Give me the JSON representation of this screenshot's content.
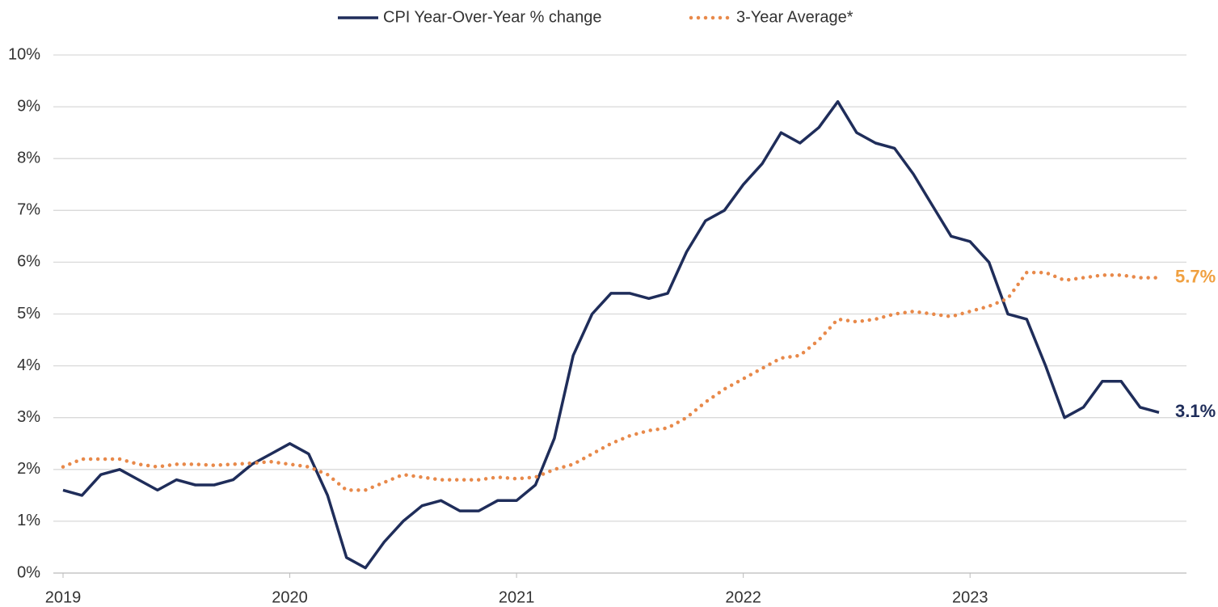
{
  "chart_data": {
    "type": "line",
    "categories": [
      "2019",
      null,
      null,
      null,
      null,
      null,
      null,
      null,
      null,
      null,
      null,
      null,
      "2020",
      null,
      null,
      null,
      null,
      null,
      null,
      null,
      null,
      null,
      null,
      null,
      "2021",
      null,
      null,
      null,
      null,
      null,
      null,
      null,
      null,
      null,
      null,
      null,
      "2022",
      null,
      null,
      null,
      null,
      null,
      null,
      null,
      null,
      null,
      null,
      null,
      "2023",
      null,
      null,
      null,
      null,
      null,
      null,
      null,
      null,
      null,
      null
    ],
    "series": [
      {
        "name": "CPI Year-Over-Year % change",
        "color": "#1f2d5a",
        "style": "solid",
        "values": [
          1.6,
          1.5,
          1.9,
          2.0,
          1.8,
          1.6,
          1.8,
          1.7,
          1.7,
          1.8,
          2.1,
          2.3,
          2.5,
          2.3,
          1.5,
          0.3,
          0.1,
          0.6,
          1.0,
          1.3,
          1.4,
          1.2,
          1.2,
          1.4,
          1.4,
          1.7,
          2.6,
          4.2,
          5.0,
          5.4,
          5.4,
          5.3,
          5.4,
          6.2,
          6.8,
          7.0,
          7.5,
          7.9,
          8.5,
          8.3,
          8.6,
          9.1,
          8.5,
          8.3,
          8.2,
          7.7,
          7.1,
          6.5,
          6.4,
          6.0,
          5.0,
          4.9,
          4.0,
          3.0,
          3.2,
          3.7,
          3.7,
          3.2,
          3.1
        ],
        "value_labels": [
          null,
          null,
          null,
          null,
          null,
          null,
          null,
          null,
          null,
          null,
          null,
          null,
          null,
          null,
          null,
          null,
          null,
          null,
          null,
          null,
          null,
          null,
          null,
          null,
          null,
          null,
          null,
          null,
          null,
          null,
          null,
          null,
          null,
          null,
          null,
          null,
          null,
          null,
          null,
          null,
          null,
          null,
          null,
          null,
          null,
          null,
          null,
          null,
          null,
          null,
          null,
          null,
          null,
          null,
          null,
          null,
          null,
          null,
          "3.1%"
        ],
        "label_color": "#1f2d5a"
      },
      {
        "name": "3-Year Average*",
        "color": "#e8894a",
        "style": "dotted",
        "values": [
          2.05,
          2.2,
          2.2,
          2.2,
          2.1,
          2.05,
          2.1,
          2.1,
          2.08,
          2.1,
          2.12,
          2.15,
          2.1,
          2.05,
          1.9,
          1.6,
          1.6,
          1.75,
          1.9,
          1.85,
          1.8,
          1.8,
          1.8,
          1.85,
          1.82,
          1.85,
          2.0,
          2.1,
          2.3,
          2.5,
          2.65,
          2.75,
          2.8,
          3.0,
          3.3,
          3.55,
          3.75,
          3.95,
          4.15,
          4.2,
          4.5,
          4.9,
          4.85,
          4.9,
          5.0,
          5.05,
          5.0,
          4.95,
          5.05,
          5.15,
          5.3,
          5.8,
          5.8,
          5.65,
          5.7,
          5.75,
          5.75,
          5.7,
          5.7
        ],
        "value_labels": [
          null,
          null,
          null,
          null,
          null,
          null,
          null,
          null,
          null,
          null,
          null,
          null,
          null,
          null,
          null,
          null,
          null,
          null,
          null,
          null,
          null,
          null,
          null,
          null,
          null,
          null,
          null,
          null,
          null,
          null,
          null,
          null,
          null,
          null,
          null,
          null,
          null,
          null,
          null,
          null,
          null,
          null,
          null,
          null,
          null,
          null,
          null,
          null,
          null,
          null,
          null,
          null,
          null,
          null,
          null,
          null,
          null,
          null,
          "5.7%"
        ],
        "label_color": "#f0a040"
      }
    ],
    "ylim": [
      0,
      10
    ],
    "yticks": [
      {
        "value": 0,
        "label": "0%"
      },
      {
        "value": 1,
        "label": "1%"
      },
      {
        "value": 2,
        "label": "2%"
      },
      {
        "value": 3,
        "label": "3%"
      },
      {
        "value": 4,
        "label": "4%"
      },
      {
        "value": 5,
        "label": "5%"
      },
      {
        "value": 6,
        "label": "6%"
      },
      {
        "value": 7,
        "label": "7%"
      },
      {
        "value": 8,
        "label": "8%"
      },
      {
        "value": 9,
        "label": "9%"
      },
      {
        "value": 10,
        "label": "10%"
      }
    ],
    "grid": true,
    "legend": "top"
  }
}
